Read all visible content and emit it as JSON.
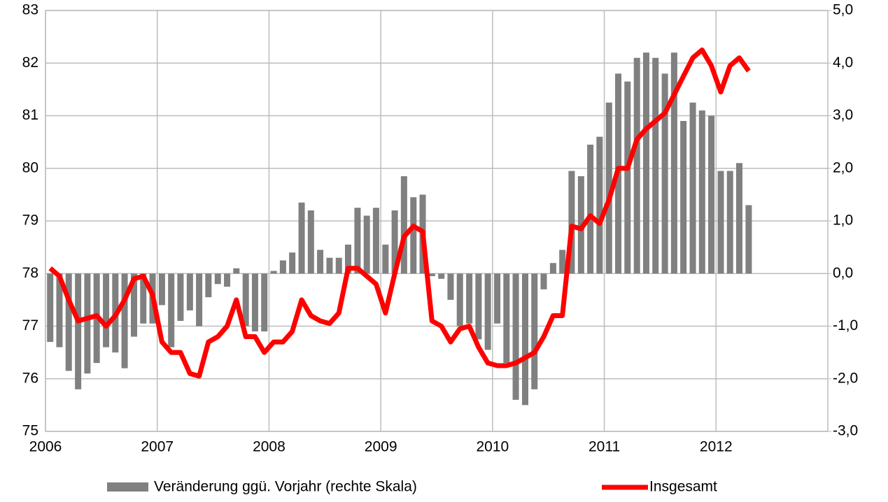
{
  "chart_data": {
    "type": "combo",
    "x": [
      2006.042,
      2006.125,
      2006.208,
      2006.292,
      2006.375,
      2006.458,
      2006.542,
      2006.625,
      2006.708,
      2006.792,
      2006.875,
      2006.958,
      2007.042,
      2007.125,
      2007.208,
      2007.292,
      2007.375,
      2007.458,
      2007.542,
      2007.625,
      2007.708,
      2007.792,
      2007.875,
      2007.958,
      2008.042,
      2008.125,
      2008.208,
      2008.292,
      2008.375,
      2008.458,
      2008.542,
      2008.625,
      2008.708,
      2008.792,
      2008.875,
      2008.958,
      2009.042,
      2009.125,
      2009.208,
      2009.292,
      2009.375,
      2009.458,
      2009.542,
      2009.625,
      2009.708,
      2009.792,
      2009.875,
      2009.958,
      2010.042,
      2010.125,
      2010.208,
      2010.292,
      2010.375,
      2010.458,
      2010.542,
      2010.625,
      2010.708,
      2010.792,
      2010.875,
      2010.958,
      2011.042,
      2011.125,
      2011.208,
      2011.292,
      2011.375,
      2011.458,
      2011.542,
      2011.625,
      2011.708,
      2011.792,
      2011.875,
      2011.958,
      2012.042,
      2012.125,
      2012.208,
      2012.292
    ],
    "series": [
      {
        "name": "Veränderung ggü. Vorjahr (rechte Skala)",
        "type": "bar",
        "axis": "y2",
        "color": "#808080",
        "values": [
          -1.3,
          -1.4,
          -1.85,
          -2.2,
          -1.9,
          -1.7,
          -1.4,
          -1.5,
          -1.8,
          -1.2,
          -0.95,
          -0.95,
          -0.6,
          -1.4,
          -0.9,
          -0.7,
          -1.0,
          -0.45,
          -0.2,
          -0.25,
          0.1,
          -1.0,
          -1.1,
          -1.1,
          0.05,
          0.25,
          0.4,
          1.35,
          1.2,
          0.45,
          0.3,
          0.3,
          0.55,
          1.25,
          1.1,
          1.25,
          0.55,
          1.2,
          1.85,
          1.45,
          1.5,
          -0.05,
          -0.1,
          -0.5,
          -1.0,
          -0.95,
          -1.25,
          -1.45,
          -0.95,
          -1.7,
          -2.4,
          -2.5,
          -2.2,
          -0.3,
          0.2,
          0.45,
          1.95,
          1.85,
          2.45,
          2.6,
          3.25,
          3.8,
          3.65,
          4.1,
          4.2,
          4.1,
          3.8,
          4.2,
          2.9,
          3.25,
          3.1,
          3.0,
          1.95,
          1.95,
          2.1,
          1.3
        ]
      },
      {
        "name": "Insgesamt",
        "type": "line",
        "axis": "y",
        "color": "#ff0000",
        "values": [
          78.1,
          77.95,
          77.5,
          77.1,
          77.15,
          77.2,
          77.0,
          77.2,
          77.5,
          77.9,
          77.95,
          77.6,
          76.7,
          76.5,
          76.5,
          76.1,
          76.05,
          76.7,
          76.8,
          77.0,
          77.5,
          76.8,
          76.8,
          76.5,
          76.7,
          76.7,
          76.9,
          77.5,
          77.2,
          77.1,
          77.05,
          77.25,
          78.1,
          78.1,
          77.95,
          77.8,
          77.25,
          78.0,
          78.7,
          78.9,
          78.8,
          77.1,
          77.0,
          76.7,
          76.95,
          77.0,
          76.6,
          76.3,
          76.25,
          76.25,
          76.3,
          76.4,
          76.5,
          76.8,
          77.2,
          77.2,
          78.9,
          78.85,
          79.1,
          78.95,
          79.4,
          80.0,
          80.0,
          80.55,
          80.75,
          80.9,
          81.05,
          81.4,
          81.75,
          82.1,
          82.25,
          81.95,
          81.45,
          81.95,
          82.1,
          81.85
        ]
      }
    ],
    "xlim": [
      2006,
      2013
    ],
    "xticks": [
      2006,
      2007,
      2008,
      2009,
      2010,
      2011,
      2012
    ],
    "ylim": [
      75,
      83
    ],
    "yticks": [
      75,
      76,
      77,
      78,
      79,
      80,
      81,
      82,
      83
    ],
    "y2lim": [
      -3,
      5
    ],
    "y2ticks": [
      {
        "value": -3,
        "label": "-3,0"
      },
      {
        "value": -2,
        "label": "-2,0"
      },
      {
        "value": -1,
        "label": "-1,0"
      },
      {
        "value": 0,
        "label": "0,0"
      },
      {
        "value": 1,
        "label": "1,0"
      },
      {
        "value": 2,
        "label": "2,0"
      },
      {
        "value": 3,
        "label": "3,0"
      },
      {
        "value": 4,
        "label": "4,0"
      },
      {
        "value": 5,
        "label": "5,0"
      }
    ],
    "grid": true,
    "legend": "bottom"
  }
}
